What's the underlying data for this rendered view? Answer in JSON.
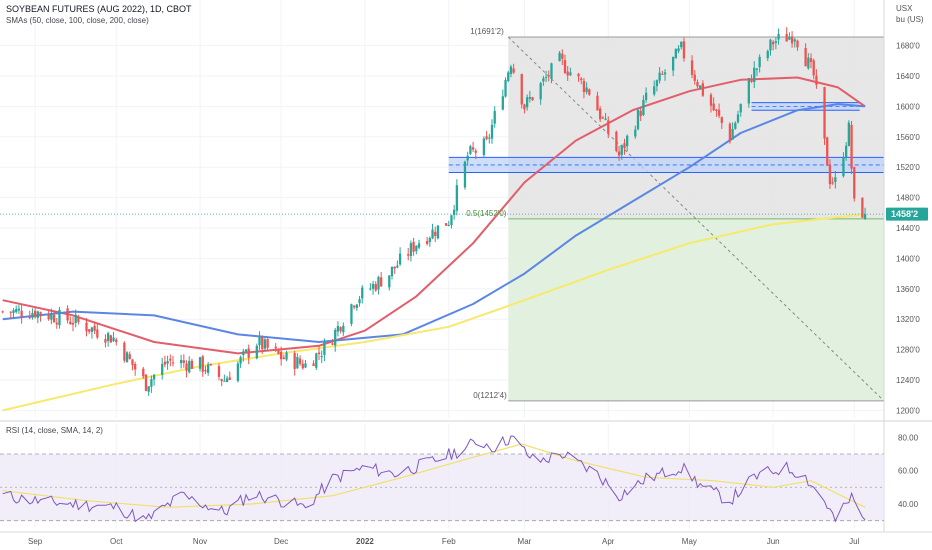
{
  "header": {
    "title": "SOYBEAN FUTURES (AUG 2022), 1D, CBOT",
    "indicator": "SMAs (50, close, 100, close, 200, close)",
    "unit_line1": "USX",
    "unit_line2": "bu (US)"
  },
  "rsi": {
    "label": "RSI (14, close, SMA, 14, 2)",
    "ticks": [
      "80.00",
      "60.00",
      "40.00"
    ]
  },
  "price_axis": {
    "ticks": [
      "1680'0",
      "1640'0",
      "1600'0",
      "1560'0",
      "1520'0",
      "1480'0",
      "1440'0",
      "1400'0",
      "1360'0",
      "1320'0",
      "1280'0",
      "1240'0",
      "1200'0"
    ],
    "last_price": "1458'2"
  },
  "time_axis": {
    "ticks": [
      "Sep",
      "Oct",
      "Nov",
      "Dec",
      "2022",
      "Feb",
      "Mar",
      "Apr",
      "May",
      "Jun",
      "Jul"
    ]
  },
  "fib": {
    "level_1": "1(1691'2)",
    "level_05": "0.5(1452'0)",
    "level_0": "0(1212'4)"
  },
  "colors": {
    "up": "#26a69a",
    "down": "#ef5350",
    "sma50": "#e35d6a",
    "sma100": "#5b86e5",
    "sma200": "#f7e96b",
    "rsi_line": "#7e57c2",
    "rsi_ma": "#f0e06a",
    "zone_fill": "#bfd3f7",
    "zone_line": "#2962ff",
    "fib_upper": "#e3e3e3",
    "fib_lower": "#dff0dc",
    "price_tag": "#26a69a"
  },
  "chart_data": {
    "type": "candlestick",
    "title": "SOYBEAN FUTURES (AUG 2022), 1D, CBOT",
    "x_range": [
      "2021-08-19",
      "2022-07-12"
    ],
    "y_range": [
      1190,
      1740
    ],
    "y_scale": "linear",
    "grid": true,
    "price_keypoints": [
      {
        "date": "2021-08-20",
        "price": 1330
      },
      {
        "date": "2021-09-01",
        "price": 1330
      },
      {
        "date": "2021-09-15",
        "price": 1318
      },
      {
        "date": "2021-09-30",
        "price": 1295
      },
      {
        "date": "2021-10-12",
        "price": 1235
      },
      {
        "date": "2021-10-20",
        "price": 1265
      },
      {
        "date": "2021-11-01",
        "price": 1260
      },
      {
        "date": "2021-11-10",
        "price": 1240
      },
      {
        "date": "2021-11-22",
        "price": 1290
      },
      {
        "date": "2021-12-01",
        "price": 1270
      },
      {
        "date": "2021-12-10",
        "price": 1260
      },
      {
        "date": "2021-12-18",
        "price": 1285
      },
      {
        "date": "2021-12-28",
        "price": 1345
      },
      {
        "date": "2022-01-10",
        "price": 1380
      },
      {
        "date": "2022-01-20",
        "price": 1420
      },
      {
        "date": "2022-02-01",
        "price": 1450
      },
      {
        "date": "2022-02-08",
        "price": 1535
      },
      {
        "date": "2022-02-15",
        "price": 1550
      },
      {
        "date": "2022-02-24",
        "price": 1660
      },
      {
        "date": "2022-03-01",
        "price": 1600
      },
      {
        "date": "2022-03-14",
        "price": 1660
      },
      {
        "date": "2022-03-25",
        "price": 1620
      },
      {
        "date": "2022-04-05",
        "price": 1535
      },
      {
        "date": "2022-04-15",
        "price": 1610
      },
      {
        "date": "2022-04-28",
        "price": 1675
      },
      {
        "date": "2022-05-05",
        "price": 1625
      },
      {
        "date": "2022-05-16",
        "price": 1560
      },
      {
        "date": "2022-05-24",
        "price": 1640
      },
      {
        "date": "2022-06-01",
        "price": 1685
      },
      {
        "date": "2022-06-09",
        "price": 1695
      },
      {
        "date": "2022-06-16",
        "price": 1640
      },
      {
        "date": "2022-06-22",
        "price": 1505
      },
      {
        "date": "2022-06-24",
        "price": 1500
      },
      {
        "date": "2022-06-29",
        "price": 1570
      },
      {
        "date": "2022-07-01",
        "price": 1470
      },
      {
        "date": "2022-07-05",
        "price": 1458.25
      }
    ],
    "series": [
      {
        "name": "SMA 50",
        "color": "#e35d6a",
        "points": [
          [
            "2021-08-20",
            1345
          ],
          [
            "2021-09-15",
            1325
          ],
          [
            "2021-10-15",
            1290
          ],
          [
            "2021-11-15",
            1275
          ],
          [
            "2021-12-15",
            1285
          ],
          [
            "2022-01-01",
            1305
          ],
          [
            "2022-01-20",
            1350
          ],
          [
            "2022-02-10",
            1420
          ],
          [
            "2022-03-01",
            1500
          ],
          [
            "2022-03-20",
            1555
          ],
          [
            "2022-04-10",
            1595
          ],
          [
            "2022-05-01",
            1620
          ],
          [
            "2022-05-20",
            1635
          ],
          [
            "2022-06-10",
            1638
          ],
          [
            "2022-06-25",
            1625
          ],
          [
            "2022-07-05",
            1600
          ]
        ]
      },
      {
        "name": "SMA 100",
        "color": "#5b86e5",
        "points": [
          [
            "2021-08-20",
            1320
          ],
          [
            "2021-09-15",
            1330
          ],
          [
            "2021-10-15",
            1325
          ],
          [
            "2021-11-15",
            1300
          ],
          [
            "2021-12-15",
            1290
          ],
          [
            "2022-01-15",
            1300
          ],
          [
            "2022-02-10",
            1340
          ],
          [
            "2022-03-01",
            1380
          ],
          [
            "2022-03-20",
            1430
          ],
          [
            "2022-04-10",
            1475
          ],
          [
            "2022-05-01",
            1520
          ],
          [
            "2022-05-20",
            1565
          ],
          [
            "2022-06-10",
            1595
          ],
          [
            "2022-06-25",
            1603
          ],
          [
            "2022-07-05",
            1600
          ]
        ]
      },
      {
        "name": "SMA 200",
        "color": "#f7e96b",
        "points": [
          [
            "2021-08-20",
            1200
          ],
          [
            "2021-10-01",
            1235
          ],
          [
            "2021-11-01",
            1258
          ],
          [
            "2021-12-01",
            1275
          ],
          [
            "2022-01-01",
            1290
          ],
          [
            "2022-02-01",
            1310
          ],
          [
            "2022-03-01",
            1345
          ],
          [
            "2022-04-01",
            1385
          ],
          [
            "2022-05-01",
            1420
          ],
          [
            "2022-06-01",
            1445
          ],
          [
            "2022-07-05",
            1458
          ]
        ]
      }
    ],
    "zones": [
      {
        "from": "2022-02-01",
        "to": "2022-07-12",
        "low": 1513,
        "high": 1533
      },
      {
        "from": "2022-05-24",
        "to": "2022-07-03",
        "low": 1595,
        "high": 1605
      }
    ],
    "fib_retracement": {
      "from": "2022-02-23",
      "to": "2022-07-12",
      "high": 1691.25,
      "mid": 1452,
      "low": 1212.5
    },
    "rsi": {
      "y_range": [
        25,
        88
      ],
      "band": [
        30,
        70
      ],
      "keypoints": [
        [
          "2021-08-20",
          45
        ],
        [
          "2021-09-01",
          42
        ],
        [
          "2021-09-15",
          40
        ],
        [
          "2021-10-01",
          38
        ],
        [
          "2021-10-12",
          30
        ],
        [
          "2021-10-25",
          45
        ],
        [
          "2021-11-10",
          35
        ],
        [
          "2021-11-20",
          46
        ],
        [
          "2021-12-01",
          42
        ],
        [
          "2021-12-10",
          38
        ],
        [
          "2021-12-20",
          55
        ],
        [
          "2022-01-01",
          62
        ],
        [
          "2022-01-12",
          58
        ],
        [
          "2022-01-25",
          65
        ],
        [
          "2022-02-05",
          72
        ],
        [
          "2022-02-12",
          78
        ],
        [
          "2022-02-18",
          74
        ],
        [
          "2022-02-24",
          80
        ],
        [
          "2022-03-05",
          65
        ],
        [
          "2022-03-15",
          70
        ],
        [
          "2022-03-28",
          58
        ],
        [
          "2022-04-05",
          45
        ],
        [
          "2022-04-15",
          55
        ],
        [
          "2022-04-28",
          62
        ],
        [
          "2022-05-06",
          50
        ],
        [
          "2022-05-16",
          42
        ],
        [
          "2022-05-25",
          56
        ],
        [
          "2022-06-05",
          62
        ],
        [
          "2022-06-12",
          58
        ],
        [
          "2022-06-20",
          42
        ],
        [
          "2022-06-24",
          30
        ],
        [
          "2022-06-30",
          44
        ],
        [
          "2022-07-05",
          29
        ]
      ],
      "ma_keypoints": [
        [
          "2021-08-20",
          48
        ],
        [
          "2021-09-20",
          42
        ],
        [
          "2021-10-20",
          38
        ],
        [
          "2021-11-20",
          40
        ],
        [
          "2021-12-20",
          45
        ],
        [
          "2022-01-15",
          56
        ],
        [
          "2022-02-10",
          68
        ],
        [
          "2022-02-28",
          76
        ],
        [
          "2022-03-20",
          66
        ],
        [
          "2022-04-15",
          56
        ],
        [
          "2022-05-10",
          54
        ],
        [
          "2022-06-01",
          50
        ],
        [
          "2022-06-15",
          54
        ],
        [
          "2022-07-05",
          38
        ]
      ]
    }
  }
}
